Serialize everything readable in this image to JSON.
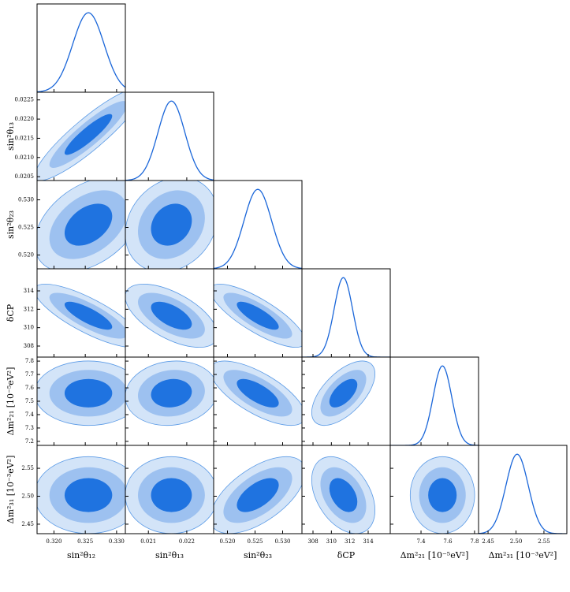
{
  "chart_data": {
    "type": "corner",
    "parameters": [
      {
        "label": "sin²θ₁₂",
        "lim": [
          0.3173,
          0.3314
        ],
        "mean": 0.3255,
        "sigma": 0.0025,
        "xticks": [
          {
            "value": 0.32,
            "label": "0.320"
          },
          {
            "value": 0.325,
            "label": "0.325"
          },
          {
            "value": 0.33,
            "label": "0.330"
          }
        ]
      },
      {
        "label": "sin²θ₁₃",
        "lim": [
          0.0204,
          0.0227
        ],
        "mean": 0.0216,
        "sigma": 0.00035,
        "xticks": [
          {
            "value": 0.021,
            "label": "0.021"
          },
          {
            "value": 0.022,
            "label": "0.022"
          }
        ],
        "yticks": [
          {
            "value": 0.0205,
            "label": "0.0205"
          },
          {
            "value": 0.021,
            "label": "0.0210"
          },
          {
            "value": 0.0215,
            "label": "0.0215"
          },
          {
            "value": 0.022,
            "label": "0.0220"
          },
          {
            "value": 0.0225,
            "label": "0.0225"
          }
        ]
      },
      {
        "label": "sin²θ₂₃",
        "lim": [
          0.5175,
          0.5335
        ],
        "mean": 0.5255,
        "sigma": 0.0025,
        "xticks": [
          {
            "value": 0.52,
            "label": "0.520"
          },
          {
            "value": 0.525,
            "label": "0.525"
          },
          {
            "value": 0.53,
            "label": "0.530"
          }
        ],
        "yticks": [
          {
            "value": 0.52,
            "label": "0.520"
          },
          {
            "value": 0.525,
            "label": "0.525"
          },
          {
            "value": 0.53,
            "label": "0.530"
          }
        ]
      },
      {
        "label": "δCP",
        "lim": [
          306.8,
          316.4
        ],
        "mean": 311.3,
        "sigma": 1.0,
        "xticks": [
          308,
          310,
          312,
          314
        ],
        "yticks": [
          308,
          310,
          312,
          314
        ]
      },
      {
        "label": "Δm²₂₁ [10⁻⁵eV²]",
        "lim": [
          7.17,
          7.83
        ],
        "mean": 7.56,
        "sigma": 0.07,
        "xticks": [
          7.4,
          7.6,
          7.8
        ],
        "yticks": [
          7.2,
          7.3,
          7.4,
          7.5,
          7.6,
          7.7,
          7.8
        ]
      },
      {
        "label": "Δm²₃₁ [10⁻³eV²]",
        "lim": [
          2.433,
          2.591
        ],
        "mean": 2.502,
        "sigma": 0.02,
        "xticks": [
          2.45,
          {
            "value": 2.5,
            "label": "2.50"
          },
          2.55
        ],
        "yticks": [
          2.45,
          {
            "value": 2.5,
            "label": "2.50"
          },
          2.55
        ]
      }
    ],
    "correlations": [
      [],
      [
        0.9
      ],
      [
        0.4,
        0.2
      ],
      [
        -0.8,
        -0.6,
        -0.8
      ],
      [
        0.0,
        0.1,
        -0.7,
        0.6
      ],
      [
        0.0,
        0.0,
        0.6,
        -0.4,
        0.0
      ]
    ],
    "line_color": "#1a66d9",
    "level_colors": [
      "#d3e4f8",
      "#9dc1f0",
      "#1f73e0"
    ],
    "contour_edge": "#5a9ae6"
  }
}
